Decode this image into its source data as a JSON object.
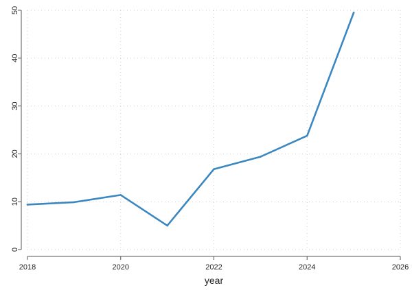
{
  "chart_data": {
    "type": "line",
    "title": "",
    "xlabel": "year",
    "ylabel": "",
    "xlim": [
      2018,
      2026
    ],
    "ylim": [
      0,
      50
    ],
    "x_ticks": [
      2018,
      2020,
      2022,
      2024,
      2026
    ],
    "y_ticks": [
      0,
      10,
      20,
      30,
      40,
      50
    ],
    "grid": true,
    "series": [
      {
        "x": [
          2018,
          2019,
          2020,
          2021,
          2022,
          2023,
          2024,
          2025
        ],
        "values": [
          9.4,
          9.9,
          11.4,
          5.0,
          16.8,
          19.4,
          23.8,
          49.5
        ],
        "color": "#3b87c0"
      }
    ]
  }
}
